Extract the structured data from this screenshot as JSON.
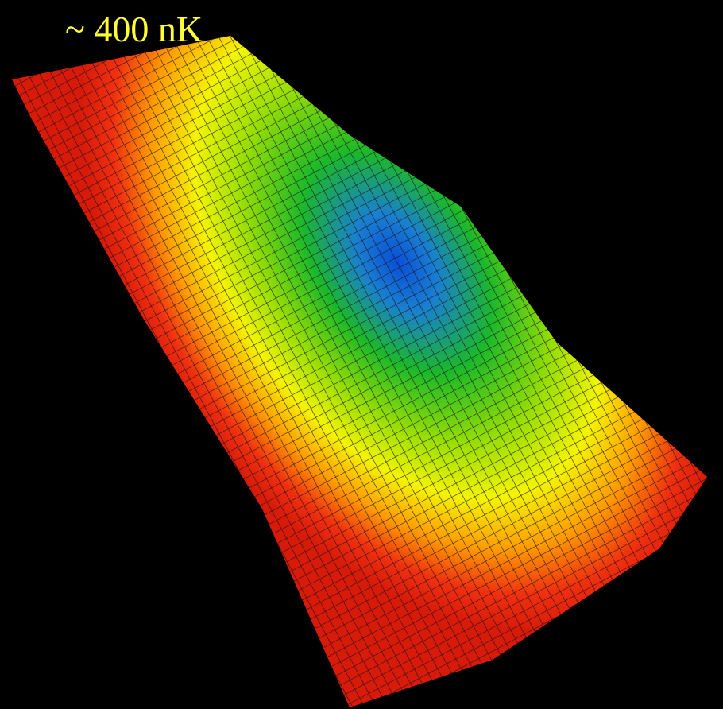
{
  "label": "~ 400 nK"
}
